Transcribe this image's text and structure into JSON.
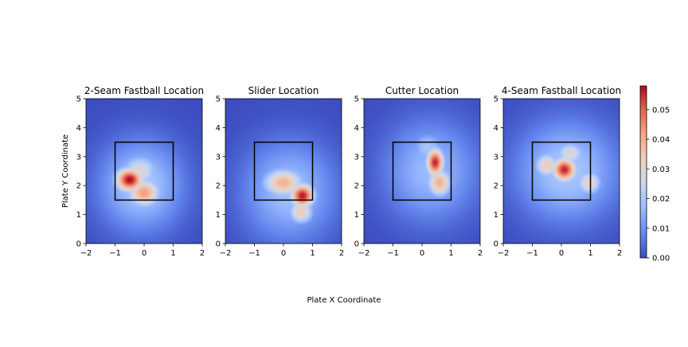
{
  "figure": {
    "shared_xlabel": "Plate X Coordinate",
    "shared_ylabel": "Plate Y Coordinate"
  },
  "colormap": {
    "name": "coolwarm",
    "stops": [
      "#3b4cc0",
      "#6688ee",
      "#9abbff",
      "#c9d7f0",
      "#edd1c2",
      "#f7a889",
      "#e26952",
      "#b40426"
    ],
    "ticks": [
      0.0,
      0.01,
      0.02,
      0.03,
      0.04,
      0.05
    ],
    "tick_labels": [
      "0.00",
      "0.01",
      "0.02",
      "0.03",
      "0.04",
      "0.05"
    ],
    "range": [
      0.0,
      0.058
    ]
  },
  "chart_data": [
    {
      "type": "heatmap",
      "title": "2-Seam Fastball Location",
      "xlabel": "Plate X Coordinate",
      "ylabel": "Plate Y Coordinate",
      "xlim": [
        -2,
        2
      ],
      "ylim": [
        0,
        5
      ],
      "xticks": [
        -2,
        -1,
        0,
        1,
        2
      ],
      "yticks": [
        0,
        1,
        2,
        3,
        4,
        5
      ],
      "xtick_labels": [
        "−2",
        "−1",
        "0",
        "1",
        "2"
      ],
      "ytick_labels": [
        "0",
        "1",
        "2",
        "3",
        "4",
        "5"
      ],
      "strike_zone": {
        "x": [
          -1,
          1
        ],
        "y": [
          1.5,
          3.5
        ]
      },
      "density_peaks": [
        {
          "x": -0.5,
          "y": 2.2,
          "density": 0.058,
          "spread_x": 0.35,
          "spread_y": 0.3
        },
        {
          "x": 0.0,
          "y": 1.75,
          "density": 0.043,
          "spread_x": 0.4,
          "spread_y": 0.35
        },
        {
          "x": -0.15,
          "y": 2.5,
          "density": 0.03,
          "spread_x": 0.45,
          "spread_y": 0.4
        },
        {
          "x": -0.1,
          "y": 2.0,
          "density": 0.02,
          "spread_x": 1.0,
          "spread_y": 1.1
        }
      ]
    },
    {
      "type": "heatmap",
      "title": "Slider Location",
      "xlabel": "Plate X Coordinate",
      "ylabel": "",
      "xlim": [
        -2,
        2
      ],
      "ylim": [
        0,
        5
      ],
      "xticks": [
        -2,
        -1,
        0,
        1,
        2
      ],
      "yticks": [
        0,
        1,
        2,
        3,
        4,
        5
      ],
      "xtick_labels": [
        "−2",
        "−1",
        "0",
        "1",
        "2"
      ],
      "ytick_labels": [
        "0",
        "1",
        "2",
        "3",
        "4",
        "5"
      ],
      "strike_zone": {
        "x": [
          -1,
          1
        ],
        "y": [
          1.5,
          3.5
        ]
      },
      "density_peaks": [
        {
          "x": 0.65,
          "y": 1.65,
          "density": 0.057,
          "spread_x": 0.3,
          "spread_y": 0.3
        },
        {
          "x": 0.0,
          "y": 2.1,
          "density": 0.04,
          "spread_x": 0.5,
          "spread_y": 0.35
        },
        {
          "x": 0.6,
          "y": 1.1,
          "density": 0.035,
          "spread_x": 0.3,
          "spread_y": 0.3
        },
        {
          "x": 0.2,
          "y": 1.8,
          "density": 0.018,
          "spread_x": 1.1,
          "spread_y": 1.2
        }
      ]
    },
    {
      "type": "heatmap",
      "title": "Cutter Location",
      "xlabel": "Plate X Coordinate",
      "ylabel": "",
      "xlim": [
        -2,
        2
      ],
      "ylim": [
        0,
        5
      ],
      "xticks": [
        -2,
        -1,
        0,
        1,
        2
      ],
      "yticks": [
        0,
        1,
        2,
        3,
        4,
        5
      ],
      "xtick_labels": [
        "−2",
        "−1",
        "0",
        "1",
        "2"
      ],
      "ytick_labels": [
        "0",
        "1",
        "2",
        "3",
        "4",
        "5"
      ],
      "strike_zone": {
        "x": [
          -1,
          1
        ],
        "y": [
          1.5,
          3.5
        ]
      },
      "density_peaks": [
        {
          "x": 0.45,
          "y": 2.8,
          "density": 0.056,
          "spread_x": 0.22,
          "spread_y": 0.35
        },
        {
          "x": 0.6,
          "y": 2.1,
          "density": 0.04,
          "spread_x": 0.3,
          "spread_y": 0.35
        },
        {
          "x": 0.2,
          "y": 3.3,
          "density": 0.02,
          "spread_x": 0.4,
          "spread_y": 0.4
        },
        {
          "x": 0.3,
          "y": 2.5,
          "density": 0.017,
          "spread_x": 1.1,
          "spread_y": 1.2
        }
      ]
    },
    {
      "type": "heatmap",
      "title": "4-Seam Fastball Location",
      "xlabel": "Plate X Coordinate",
      "ylabel": "",
      "xlim": [
        -2,
        2
      ],
      "ylim": [
        0,
        5
      ],
      "xticks": [
        -2,
        -1,
        0,
        1,
        2
      ],
      "yticks": [
        0,
        1,
        2,
        3,
        4,
        5
      ],
      "xtick_labels": [
        "−2",
        "−1",
        "0",
        "1",
        "2"
      ],
      "ytick_labels": [
        "0",
        "1",
        "2",
        "3",
        "4",
        "5"
      ],
      "strike_zone": {
        "x": [
          -1,
          1
        ],
        "y": [
          1.5,
          3.5
        ]
      },
      "density_peaks": [
        {
          "x": 0.1,
          "y": 2.55,
          "density": 0.056,
          "spread_x": 0.3,
          "spread_y": 0.3
        },
        {
          "x": -0.5,
          "y": 2.7,
          "density": 0.035,
          "spread_x": 0.3,
          "spread_y": 0.3
        },
        {
          "x": 0.95,
          "y": 2.1,
          "density": 0.033,
          "spread_x": 0.3,
          "spread_y": 0.3
        },
        {
          "x": 0.3,
          "y": 3.1,
          "density": 0.03,
          "spread_x": 0.35,
          "spread_y": 0.3
        },
        {
          "x": 0.2,
          "y": 2.5,
          "density": 0.02,
          "spread_x": 1.2,
          "spread_y": 1.2
        }
      ]
    }
  ]
}
